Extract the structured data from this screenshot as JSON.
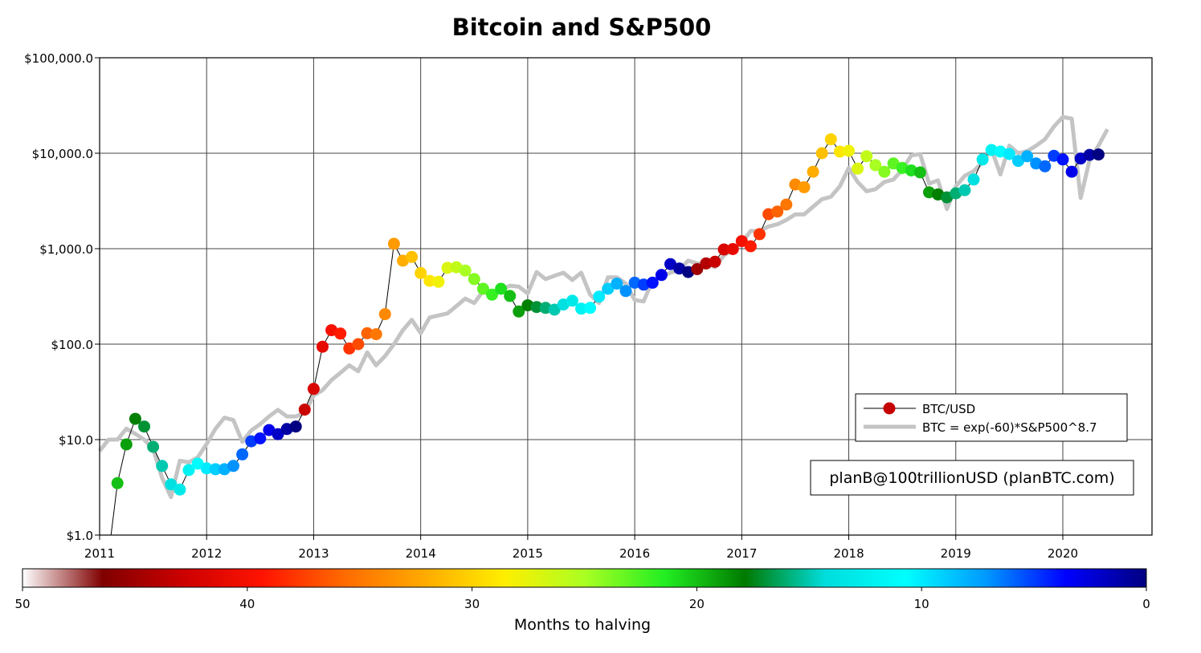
{
  "chart_data": {
    "type": "scatter",
    "title": "Bitcoin and S&P500",
    "xlabel": "",
    "ylabel": "",
    "y_scale": "log",
    "ylim": [
      1,
      100000
    ],
    "xlim": [
      "2011-01",
      "2020-11"
    ],
    "x_tick_labels": [
      "2011",
      "2012",
      "2013",
      "2014",
      "2015",
      "2016",
      "2017",
      "2018",
      "2019",
      "2020"
    ],
    "y_tick_labels": [
      "$1.0",
      "$10.0",
      "$100.0",
      "$1,000.0",
      "$10,000.0",
      "$100,000.0"
    ],
    "grid": true,
    "legend_position": "right",
    "legend": [
      {
        "label": "BTC/USD",
        "color": "#c40000",
        "style": "line-with-dot"
      },
      {
        "label": "BTC = exp(-60)*S&P500^8.7",
        "color": "#c4c4c4",
        "style": "thick-line"
      }
    ],
    "annotation": "planB@100trillionUSD (planBTC.com)",
    "colorbar": {
      "label": "Months to halving",
      "range": [
        50,
        0
      ],
      "tick_labels": [
        "50",
        "40",
        "30",
        "20",
        "10",
        "0"
      ],
      "colors": [
        "#ffffff",
        "#800000",
        "#cc0000",
        "#ff1400",
        "#ff6a00",
        "#ffaa00",
        "#ffee00",
        "#aaff22",
        "#22ee22",
        "#007a00",
        "#00dddd",
        "#00ffff",
        "#0099ff",
        "#0000ff",
        "#000080"
      ]
    },
    "series": [
      {
        "name": "BTC/USD",
        "type": "scatter-line",
        "x": [
          "2011-03",
          "2011-04",
          "2011-05",
          "2011-06",
          "2011-07",
          "2011-08",
          "2011-09",
          "2011-10",
          "2011-11",
          "2011-12",
          "2012-01",
          "2012-02",
          "2012-03",
          "2012-04",
          "2012-05",
          "2012-06",
          "2012-07",
          "2012-08",
          "2012-09",
          "2012-10",
          "2012-11",
          "2012-12",
          "2013-01",
          "2013-02",
          "2013-03",
          "2013-04",
          "2013-05",
          "2013-06",
          "2013-07",
          "2013-08",
          "2013-09",
          "2013-10",
          "2013-11",
          "2013-12",
          "2014-01",
          "2014-02",
          "2014-03",
          "2014-04",
          "2014-05",
          "2014-06",
          "2014-07",
          "2014-08",
          "2014-09",
          "2014-10",
          "2014-11",
          "2014-12",
          "2015-01",
          "2015-02",
          "2015-03",
          "2015-04",
          "2015-05",
          "2015-06",
          "2015-07",
          "2015-08",
          "2015-09",
          "2015-10",
          "2015-11",
          "2015-12",
          "2016-01",
          "2016-02",
          "2016-03",
          "2016-04",
          "2016-05",
          "2016-06",
          "2016-07",
          "2016-08",
          "2016-09",
          "2016-10",
          "2016-11",
          "2016-12",
          "2017-01",
          "2017-02",
          "2017-03",
          "2017-04",
          "2017-05",
          "2017-06",
          "2017-07",
          "2017-08",
          "2017-09",
          "2017-10",
          "2017-11",
          "2017-12",
          "2018-01",
          "2018-02",
          "2018-03",
          "2018-04",
          "2018-05",
          "2018-06",
          "2018-07",
          "2018-08",
          "2018-09",
          "2018-10",
          "2018-11",
          "2018-12",
          "2019-01",
          "2019-02",
          "2019-03",
          "2019-04",
          "2019-05",
          "2019-06",
          "2019-07",
          "2019-08",
          "2019-09",
          "2019-10",
          "2019-11",
          "2019-12",
          "2020-01",
          "2020-02",
          "2020-03",
          "2020-04",
          "2020-05"
        ],
        "y": [
          3.5,
          8.9,
          16.5,
          13.7,
          8.4,
          5.3,
          3.4,
          3.0,
          4.8,
          5.6,
          5.0,
          4.9,
          4.9,
          5.3,
          7.0,
          9.6,
          10.3,
          12.6,
          11.4,
          12.9,
          13.7,
          20.6,
          34,
          94,
          140,
          129,
          90,
          100,
          130,
          127,
          206,
          1125,
          748,
          820,
          555,
          460,
          450,
          630,
          640,
          590,
          480,
          380,
          330,
          380,
          320,
          220,
          255,
          245,
          240,
          230,
          260,
          285,
          235,
          240,
          315,
          380,
          430,
          360,
          440,
          420,
          440,
          530,
          690,
          620,
          570,
          610,
          700,
          730,
          980,
          990,
          1200,
          1060,
          1420,
          2300,
          2450,
          2900,
          4700,
          4400,
          6400,
          10000,
          14000,
          10400,
          10600,
          6900,
          9300,
          7500,
          6400,
          7800,
          7000,
          6600,
          6300,
          3900,
          3700,
          3450,
          3800,
          4100,
          5300,
          8600,
          10800,
          10400,
          9800,
          8300,
          9300,
          7800,
          7300,
          9400,
          8600,
          6400,
          8800,
          9600,
          9700
        ]
      },
      {
        "name": "BTC = exp(-60)*S&P500^8.7",
        "type": "line",
        "x": [
          "2011-01",
          "2011-02",
          "2011-03",
          "2011-04",
          "2011-05",
          "2011-06",
          "2011-07",
          "2011-08",
          "2011-09",
          "2011-10",
          "2011-11",
          "2011-12",
          "2012-01",
          "2012-02",
          "2012-03",
          "2012-04",
          "2012-05",
          "2012-06",
          "2012-07",
          "2012-08",
          "2012-09",
          "2012-10",
          "2012-11",
          "2012-12",
          "2013-01",
          "2013-02",
          "2013-03",
          "2013-04",
          "2013-05",
          "2013-06",
          "2013-07",
          "2013-08",
          "2013-09",
          "2013-10",
          "2013-11",
          "2013-12",
          "2014-01",
          "2014-02",
          "2014-03",
          "2014-04",
          "2014-05",
          "2014-06",
          "2014-07",
          "2014-08",
          "2014-09",
          "2014-10",
          "2014-11",
          "2014-12",
          "2015-01",
          "2015-02",
          "2015-03",
          "2015-04",
          "2015-05",
          "2015-06",
          "2015-07",
          "2015-08",
          "2015-09",
          "2015-10",
          "2015-11",
          "2015-12",
          "2016-01",
          "2016-02",
          "2016-03",
          "2016-04",
          "2016-05",
          "2016-06",
          "2016-07",
          "2016-08",
          "2016-09",
          "2016-10",
          "2016-11",
          "2016-12",
          "2017-01",
          "2017-02",
          "2017-03",
          "2017-04",
          "2017-05",
          "2017-06",
          "2017-07",
          "2017-08",
          "2017-09",
          "2017-10",
          "2017-11",
          "2017-12",
          "2018-01",
          "2018-02",
          "2018-03",
          "2018-04",
          "2018-05",
          "2018-06",
          "2018-07",
          "2018-08",
          "2018-09",
          "2018-10",
          "2018-11",
          "2018-12",
          "2019-01",
          "2019-02",
          "2019-03",
          "2019-04",
          "2019-05",
          "2019-06",
          "2019-07",
          "2019-08",
          "2019-09",
          "2019-10",
          "2019-11",
          "2019-12",
          "2020-01",
          "2020-02",
          "2020-03",
          "2020-04",
          "2020-05",
          "2020-06"
        ],
        "y": [
          7.6,
          10,
          10,
          13,
          11.5,
          10,
          8,
          4,
          2.5,
          6,
          5.8,
          6.5,
          9,
          13,
          17,
          16,
          9.5,
          12.5,
          14.5,
          17.5,
          20.5,
          17.5,
          17.5,
          19,
          29,
          33,
          42,
          50,
          60,
          52,
          82,
          60,
          75,
          100,
          140,
          180,
          130,
          190,
          200,
          210,
          250,
          300,
          270,
          360,
          320,
          370,
          410,
          400,
          340,
          570,
          480,
          520,
          560,
          470,
          560,
          330,
          270,
          500,
          500,
          430,
          290,
          280,
          470,
          510,
          560,
          600,
          750,
          700,
          700,
          640,
          850,
          970,
          1150,
          1530,
          1530,
          1710,
          1800,
          2000,
          2290,
          2290,
          2750,
          3300,
          3500,
          4500,
          7000,
          5000,
          4000,
          4200,
          5000,
          5300,
          6700,
          9500,
          9800,
          4800,
          5200,
          2600,
          4500,
          5800,
          6500,
          8000,
          11000,
          6000,
          12000,
          10000,
          10500,
          12000,
          14000,
          19000,
          24000,
          23000,
          3400,
          8500,
          12000,
          17800
        ]
      }
    ]
  }
}
